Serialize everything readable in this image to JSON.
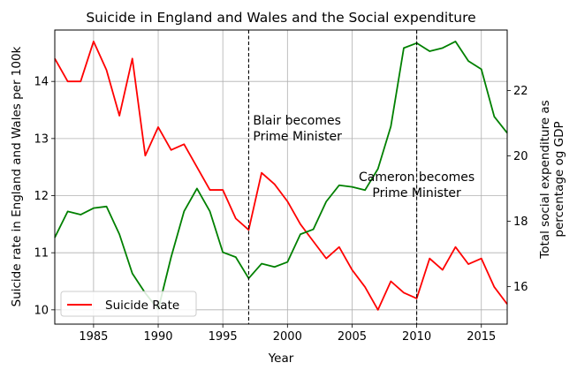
{
  "chart_data": {
    "type": "line",
    "title": "Suicide in England and Wales and the Social expenditure",
    "xlabel": "Year",
    "ylabel_left": "Suicide rate in England and Wales per 100k",
    "ylabel_right_lines": [
      "Total social expenditure as",
      "percentage og GDP"
    ],
    "xlim": [
      1982,
      2017
    ],
    "ylim_left": [
      9.75,
      14.9
    ],
    "ylim_right": [
      14.85,
      23.85
    ],
    "x_ticks": [
      1985,
      1990,
      1995,
      2000,
      2005,
      2010,
      2015
    ],
    "y_left_ticks": [
      10,
      11,
      12,
      13,
      14
    ],
    "y_right_ticks": [
      16,
      18,
      20,
      22
    ],
    "grid": true,
    "legend_position": "lower-left",
    "series": [
      {
        "name": "Suicide Rate",
        "axis": "left",
        "color": "#ff0000",
        "x": [
          1982,
          1983,
          1984,
          1985,
          1986,
          1987,
          1988,
          1989,
          1990,
          1991,
          1992,
          1993,
          1994,
          1995,
          1996,
          1997,
          1998,
          1999,
          2000,
          2001,
          2002,
          2003,
          2004,
          2005,
          2006,
          2007,
          2008,
          2009,
          2010,
          2011,
          2012,
          2013,
          2014,
          2015,
          2016,
          2017
        ],
        "y": [
          14.4,
          14.0,
          14.0,
          14.7,
          14.2,
          13.4,
          14.4,
          12.7,
          13.2,
          12.8,
          12.9,
          12.5,
          12.1,
          12.1,
          11.6,
          11.4,
          12.4,
          12.2,
          11.9,
          11.5,
          11.2,
          10.9,
          11.1,
          10.7,
          10.4,
          10.0,
          10.5,
          10.3,
          10.2,
          10.9,
          10.7,
          11.1,
          10.8,
          10.9,
          10.4,
          10.1
        ]
      },
      {
        "axis": "right",
        "color": "#008000",
        "x": [
          1982,
          1983,
          1984,
          1985,
          1986,
          1987,
          1988,
          1989,
          1990,
          1991,
          1992,
          1993,
          1994,
          1995,
          1996,
          1997,
          1998,
          1999,
          2000,
          2001,
          2002,
          2003,
          2004,
          2005,
          2006,
          2007,
          2008,
          2009,
          2010,
          2011,
          2012,
          2013,
          2014,
          2015,
          2016,
          2017
        ],
        "y": [
          17.5,
          18.3,
          18.2,
          18.4,
          18.45,
          17.6,
          16.4,
          15.8,
          15.3,
          16.9,
          18.3,
          19.0,
          18.3,
          17.05,
          16.9,
          16.25,
          16.7,
          16.6,
          16.75,
          17.6,
          17.75,
          18.6,
          19.1,
          19.05,
          18.95,
          19.6,
          20.9,
          23.3,
          23.45,
          23.2,
          23.3,
          23.5,
          22.9,
          22.65,
          21.2,
          20.7
        ]
      }
    ],
    "annotations": [
      {
        "x": 1997,
        "lines": [
          "Blair becomes",
          "Prime Minister"
        ]
      },
      {
        "x": 2010,
        "lines": [
          "Cameron becomes",
          "Prime Minister"
        ]
      }
    ]
  }
}
